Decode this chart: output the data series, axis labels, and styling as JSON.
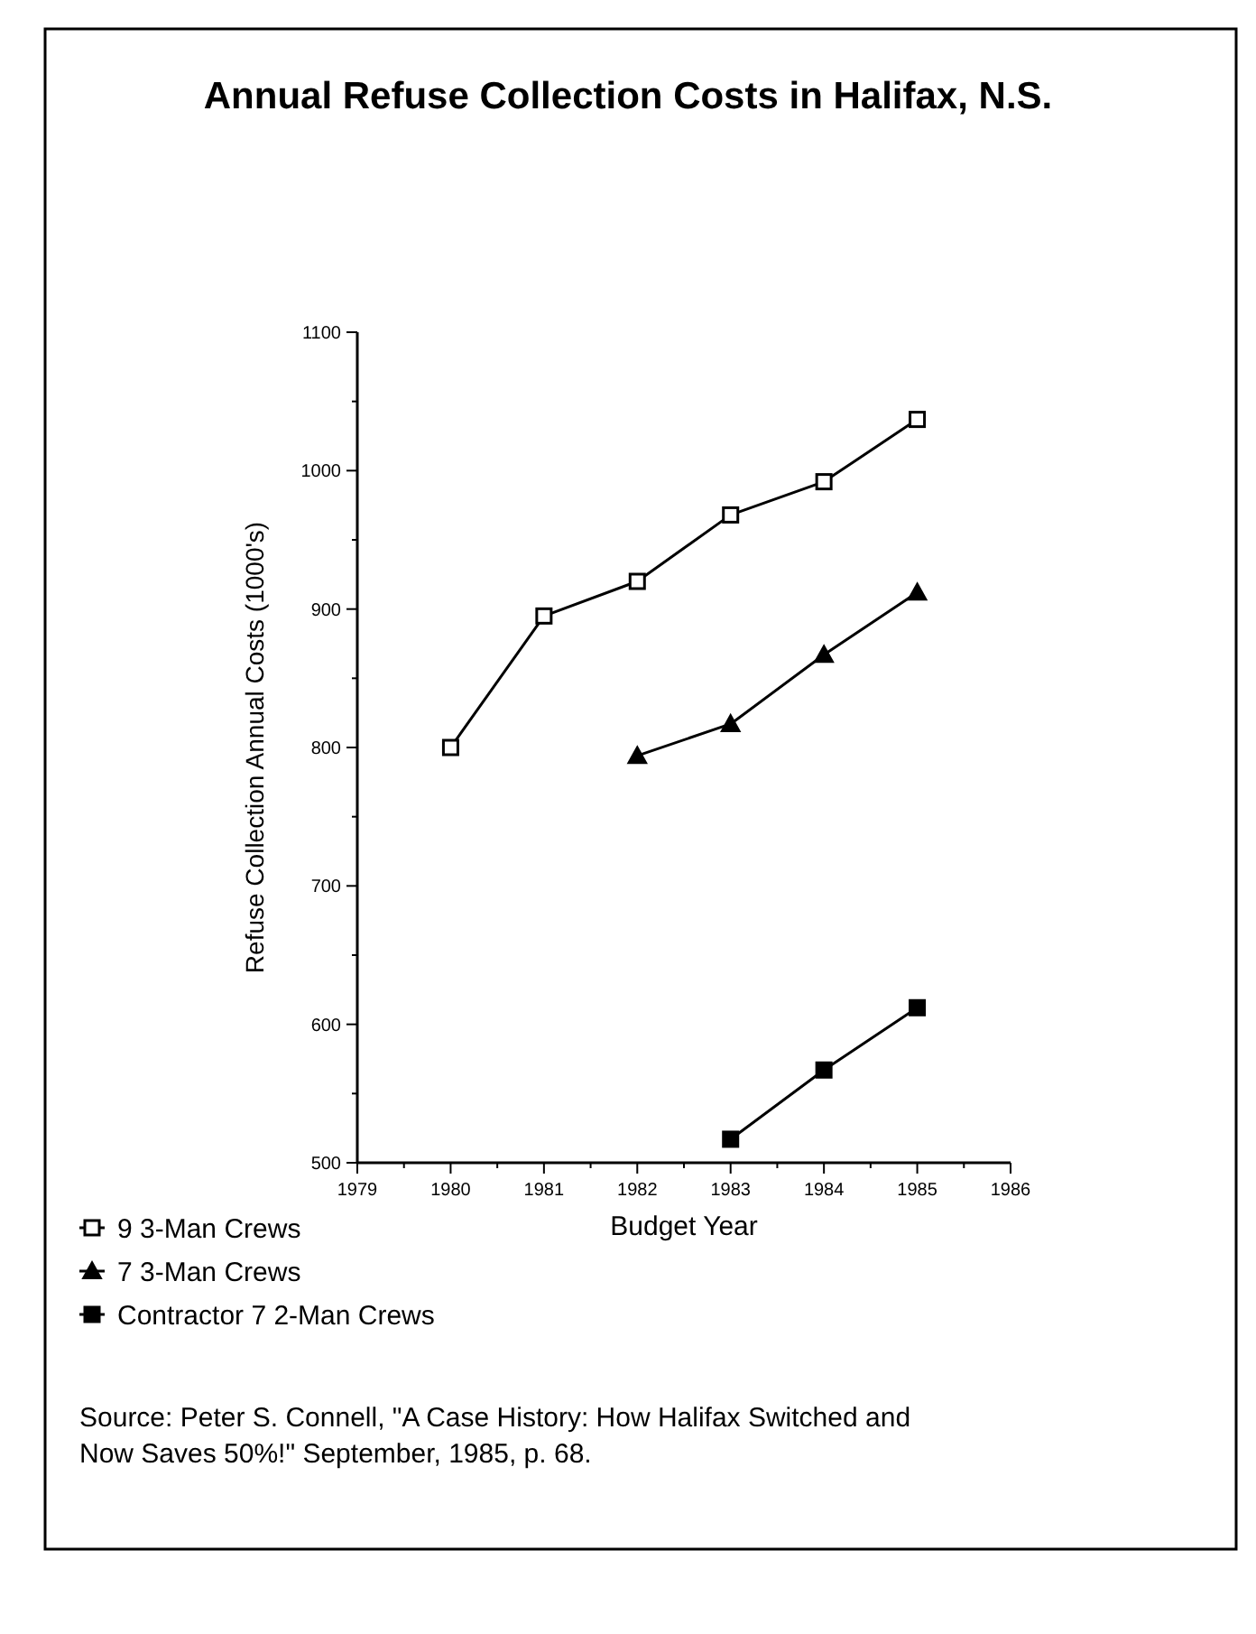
{
  "chart_data": {
    "type": "line",
    "title": "Annual Refuse Collection Costs in Halifax, N.S.",
    "xlabel": "Budget Year",
    "ylabel": "Refuse Collection Annual Costs (1000's)",
    "xlim": [
      1979,
      1986
    ],
    "xticks": [
      1979,
      {
        "value": 1979.5,
        "label": null
      },
      1980,
      {
        "value": 1980.5,
        "label": null
      },
      1981,
      {
        "value": 1981.5,
        "label": null
      },
      1982,
      {
        "value": 1982.5,
        "label": null
      },
      1983,
      {
        "value": 1983.5,
        "label": null
      },
      1984,
      {
        "value": 1984.5,
        "label": null
      },
      1985,
      {
        "value": 1985.5,
        "label": null
      },
      1986
    ],
    "ylim": [
      500,
      1100
    ],
    "yticks": [
      500,
      {
        "value": 550,
        "label": null
      },
      600,
      {
        "value": 650,
        "label": null
      },
      700,
      {
        "value": 750,
        "label": null
      },
      800,
      {
        "value": 850,
        "label": null
      },
      900,
      {
        "value": 950,
        "label": null
      },
      1000,
      {
        "value": 1050,
        "label": null
      },
      1100
    ],
    "grid": false,
    "legend": "bottom left",
    "line_style": "solid",
    "series": [
      {
        "name": "9 3-Man Crews",
        "color": "#000000",
        "marker": "square",
        "x": [
          1980,
          1981,
          1982,
          1983,
          1984,
          1985
        ],
        "values": [
          800,
          895,
          920,
          968,
          992,
          1037
        ]
      },
      {
        "name": "7 3-Man Crews",
        "color": "#000000",
        "marker": "triangle",
        "x": [
          1982,
          1983,
          1984,
          1985
        ],
        "values": [
          794,
          817,
          867,
          912
        ]
      },
      {
        "name": "Contractor 7 2-Man Crews",
        "color": "#000000",
        "marker": "square",
        "x": [
          1983,
          1984,
          1985
        ],
        "values": [
          517,
          567,
          612
        ]
      }
    ],
    "annotations": [
      "Source: Peter S. Connell, \"A Case History: How Halifax Switched and Now Saves 50%!\" September, 1985, p. 68."
    ]
  }
}
